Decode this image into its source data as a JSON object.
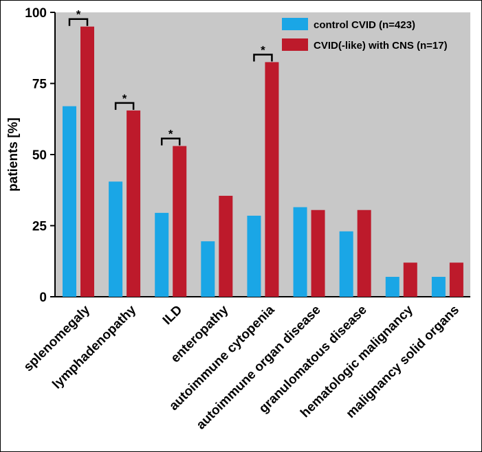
{
  "chart_data": {
    "type": "bar",
    "ylabel": "patients [%]",
    "xlabel": "",
    "ylim": [
      0,
      100
    ],
    "yticks": [
      "0",
      "25",
      "50",
      "75",
      "100"
    ],
    "categories": [
      "splenomegaly",
      "lymphadenopathy",
      "ILD",
      "enteropathy",
      "autoimmune cytopenia",
      "autoimmune organ disease",
      "granulomatous disease",
      "hematologic malignancy",
      "malignancy solid organs"
    ],
    "series": [
      {
        "name": "control CVID (n=423)",
        "color": "#1aa6e6",
        "values": [
          67,
          40.5,
          29.5,
          19.5,
          28.5,
          31.5,
          23,
          7,
          7
        ]
      },
      {
        "name": "CVID(-like) with CNS (n=17)",
        "color": "#bd1a2b",
        "values": [
          95,
          65.5,
          53,
          35.5,
          82.5,
          30.5,
          30.5,
          12,
          12
        ]
      }
    ],
    "significance": [
      {
        "category": "splenomegaly",
        "label": "*"
      },
      {
        "category": "lymphadenopathy",
        "label": "*"
      },
      {
        "category": "ILD",
        "label": "*"
      },
      {
        "category": "autoimmune cytopenia",
        "label": "*"
      }
    ],
    "plot_background": "#c8c8c8",
    "grid": false,
    "legend_position": "top-right"
  }
}
